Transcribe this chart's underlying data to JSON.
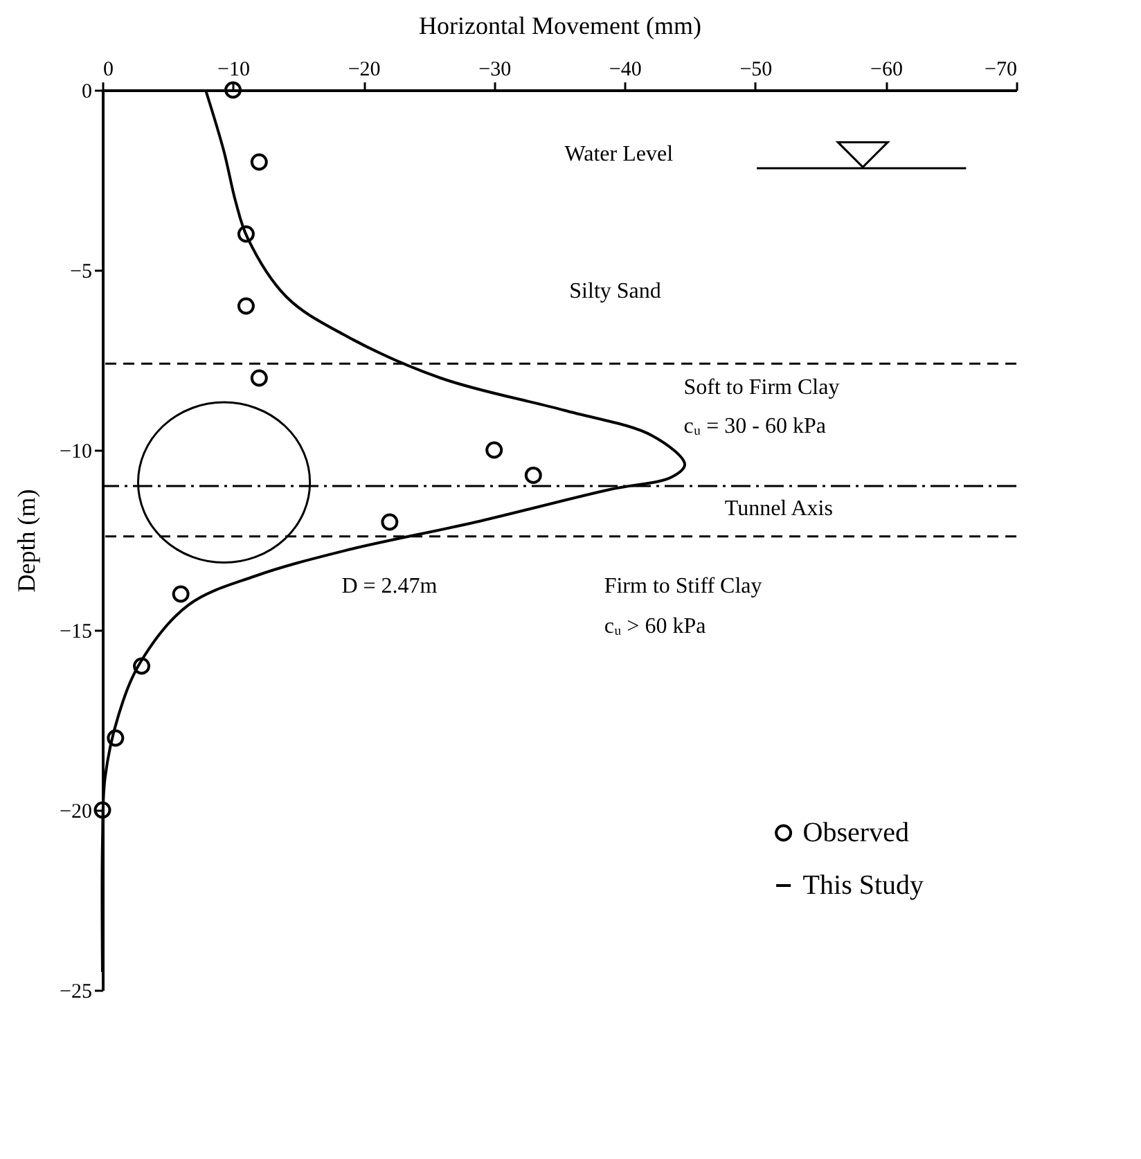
{
  "chart_data": {
    "type": "scatter",
    "xlabel": "Horizontal Movement  (mm)",
    "ylabel": "Depth (m)",
    "xlim": [
      0,
      -70
    ],
    "xticks": [
      0,
      -10,
      -20,
      -30,
      -40,
      -50,
      -60,
      -70
    ],
    "ylim": [
      -25,
      0
    ],
    "yticks": [
      0,
      -5,
      -10,
      -15,
      -20,
      -25
    ],
    "grid": false,
    "legend": "bottom right",
    "series": [
      {
        "name": "Observed",
        "color": "#000000",
        "marker": "circle",
        "x": [
          -10,
          -12,
          -11,
          -11,
          -12,
          -30,
          -33,
          -22,
          -6,
          -3,
          -1,
          0
        ],
        "values": [
          0,
          -2,
          -4,
          -6,
          -8,
          -10,
          -10.7,
          -12,
          -14,
          -16,
          -18,
          -20
        ]
      },
      {
        "name": "This Study",
        "type": "line",
        "color": "#000000",
        "marker": "none",
        "x": [
          -7.9,
          -9.3,
          -10.2,
          -11.1,
          -14.1,
          -18.5,
          -25.9,
          -35.4,
          -42.1,
          -44.6,
          -43.6,
          -38.8,
          -28.6,
          -18.5,
          -11.7,
          -6.6,
          -2.9,
          -1.2,
          -0.2,
          0,
          0
        ],
        "values": [
          0,
          -1.7,
          -3.1,
          -4.1,
          -5.75,
          -6.8,
          -8,
          -8.9,
          -9.6,
          -10.4,
          -10.75,
          -11.1,
          -12,
          -12.8,
          -13.5,
          -14.3,
          -15.9,
          -17.4,
          -19.1,
          -20.9,
          -24.5
        ]
      }
    ],
    "ref_lines": [
      {
        "axis": "y",
        "value": -7.6,
        "line_style": "dashed"
      },
      {
        "axis": "y",
        "value": -11,
        "label": "Tunnel Axis",
        "line_style": "dashed"
      },
      {
        "axis": "y",
        "value": -12.4,
        "line_style": "dashed"
      }
    ],
    "annotations": [
      "Water Level",
      "Silty Sand",
      "Soft to Firm Clay",
      "cᵤ = 30 - 60 kPa",
      "Firm to Stiff Clay",
      "cᵤ > 60 kPa",
      "D = 2.47m"
    ]
  }
}
